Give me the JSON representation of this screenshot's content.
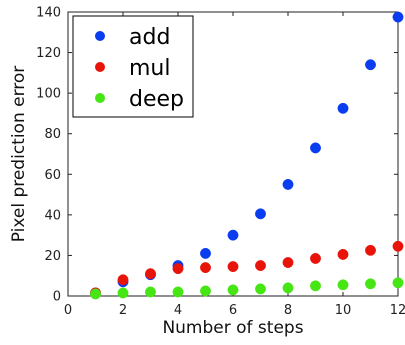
{
  "chart_data": {
    "type": "scatter",
    "xlabel": "Number of steps",
    "ylabel": "Pixel prediction error",
    "xlim": [
      0,
      12
    ],
    "ylim": [
      0,
      140
    ],
    "x_ticks": [
      0,
      2,
      4,
      6,
      8,
      10,
      12
    ],
    "y_ticks": [
      0,
      20,
      40,
      60,
      80,
      100,
      120,
      140
    ],
    "grid": false,
    "legend_position": "top-left",
    "series": [
      {
        "name": "add",
        "color": "#0a3cf0",
        "x": [
          1,
          2,
          3,
          4,
          5,
          6,
          7,
          8,
          9,
          10,
          11,
          12
        ],
        "y": [
          1.5,
          7,
          10.5,
          15,
          21,
          30,
          40.5,
          55,
          73,
          92.5,
          114,
          137.5
        ]
      },
      {
        "name": "mul",
        "color": "#e8140a",
        "x": [
          1,
          2,
          3,
          4,
          5,
          6,
          7,
          8,
          9,
          10,
          11,
          12
        ],
        "y": [
          1.5,
          8,
          11,
          13.5,
          14,
          14.5,
          15,
          16.5,
          18.5,
          20.5,
          22.5,
          24.5
        ]
      },
      {
        "name": "deep",
        "color": "#46e614",
        "x": [
          1,
          2,
          3,
          4,
          5,
          6,
          7,
          8,
          9,
          10,
          11,
          12
        ],
        "y": [
          1,
          1.5,
          2,
          2,
          2.5,
          3,
          3.5,
          4,
          5,
          5.5,
          6,
          6.5
        ]
      }
    ]
  }
}
